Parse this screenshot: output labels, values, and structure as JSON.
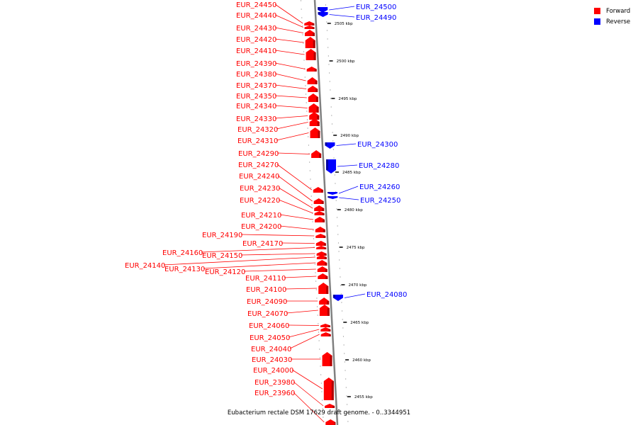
{
  "caption": "Eubacterium rectale DSM 17629 draft genome. - 0..3344951",
  "colors": {
    "forward": "#ff0000",
    "reverse": "#0000ff",
    "forward_dark": "#b00000",
    "reverse_dark": "#0000a0",
    "backbone": "#808080"
  },
  "legend": [
    {
      "label": "Forward",
      "color": "#ff0000"
    },
    {
      "label": "Reverse",
      "color": "#0000ff"
    }
  ],
  "ticks": [
    "2505 kbp",
    "2500 kbp",
    "2495 kbp",
    "2490 kbp",
    "2485 kbp",
    "2480 kbp",
    "2475 kbp",
    "2470 kbp",
    "2465 kbp",
    "2460 kbp",
    "2455 kbp"
  ],
  "forward_genes": [
    "EUR_24450",
    "EUR_24440",
    "EUR_24430",
    "EUR_24420",
    "EUR_24410",
    "EUR_24390",
    "EUR_24380",
    "EUR_24370",
    "EUR_24350",
    "EUR_24340",
    "EUR_24330",
    "EUR_24320",
    "EUR_24310",
    "EUR_24290",
    "EUR_24270",
    "EUR_24240",
    "EUR_24230",
    "EUR_24220",
    "EUR_24210",
    "EUR_24200",
    "EUR_24190",
    "EUR_24170",
    "EUR_24160",
    "EUR_24150",
    "EUR_24140",
    "EUR_24130",
    "EUR_24120",
    "EUR_24110",
    "EUR_24100",
    "EUR_24090",
    "EUR_24070",
    "EUR_24060",
    "EUR_24050",
    "EUR_24040",
    "EUR_24030",
    "EUR_24000",
    "EUR_23980",
    "EUR_23960"
  ],
  "reverse_genes": [
    "EUR_24500",
    "EUR_24490",
    "EUR_24300",
    "EUR_24280",
    "EUR_24260",
    "EUR_24250",
    "EUR_24080"
  ]
}
